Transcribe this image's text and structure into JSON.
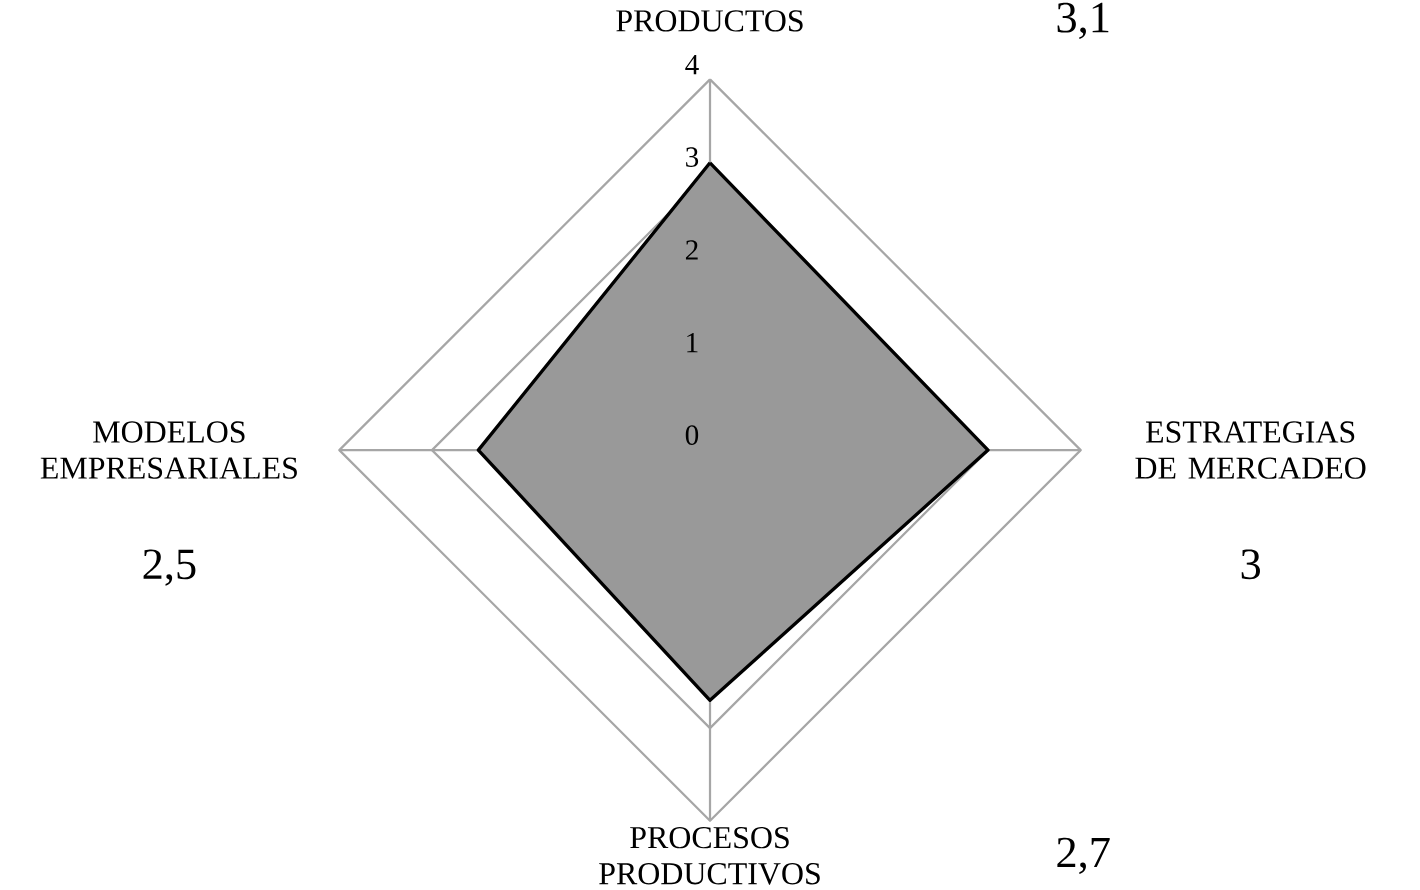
{
  "chart_data": {
    "type": "radar",
    "categories": [
      "PRODUCTOS",
      "ESTRATEGIAS DE MERCADEO",
      "PROCESOS PRODUCTIVOS",
      "MODELOS EMPRESARIALES"
    ],
    "series": [
      {
        "color": "#999999",
        "values": [
          3.1,
          3,
          2.7,
          2.5
        ]
      }
    ],
    "value_labels": [
      "3,1",
      "3",
      "2,7",
      "2,5"
    ],
    "ylim": [
      0,
      4
    ],
    "yticks": [
      0,
      1,
      2,
      3,
      4
    ],
    "grid": true
  }
}
